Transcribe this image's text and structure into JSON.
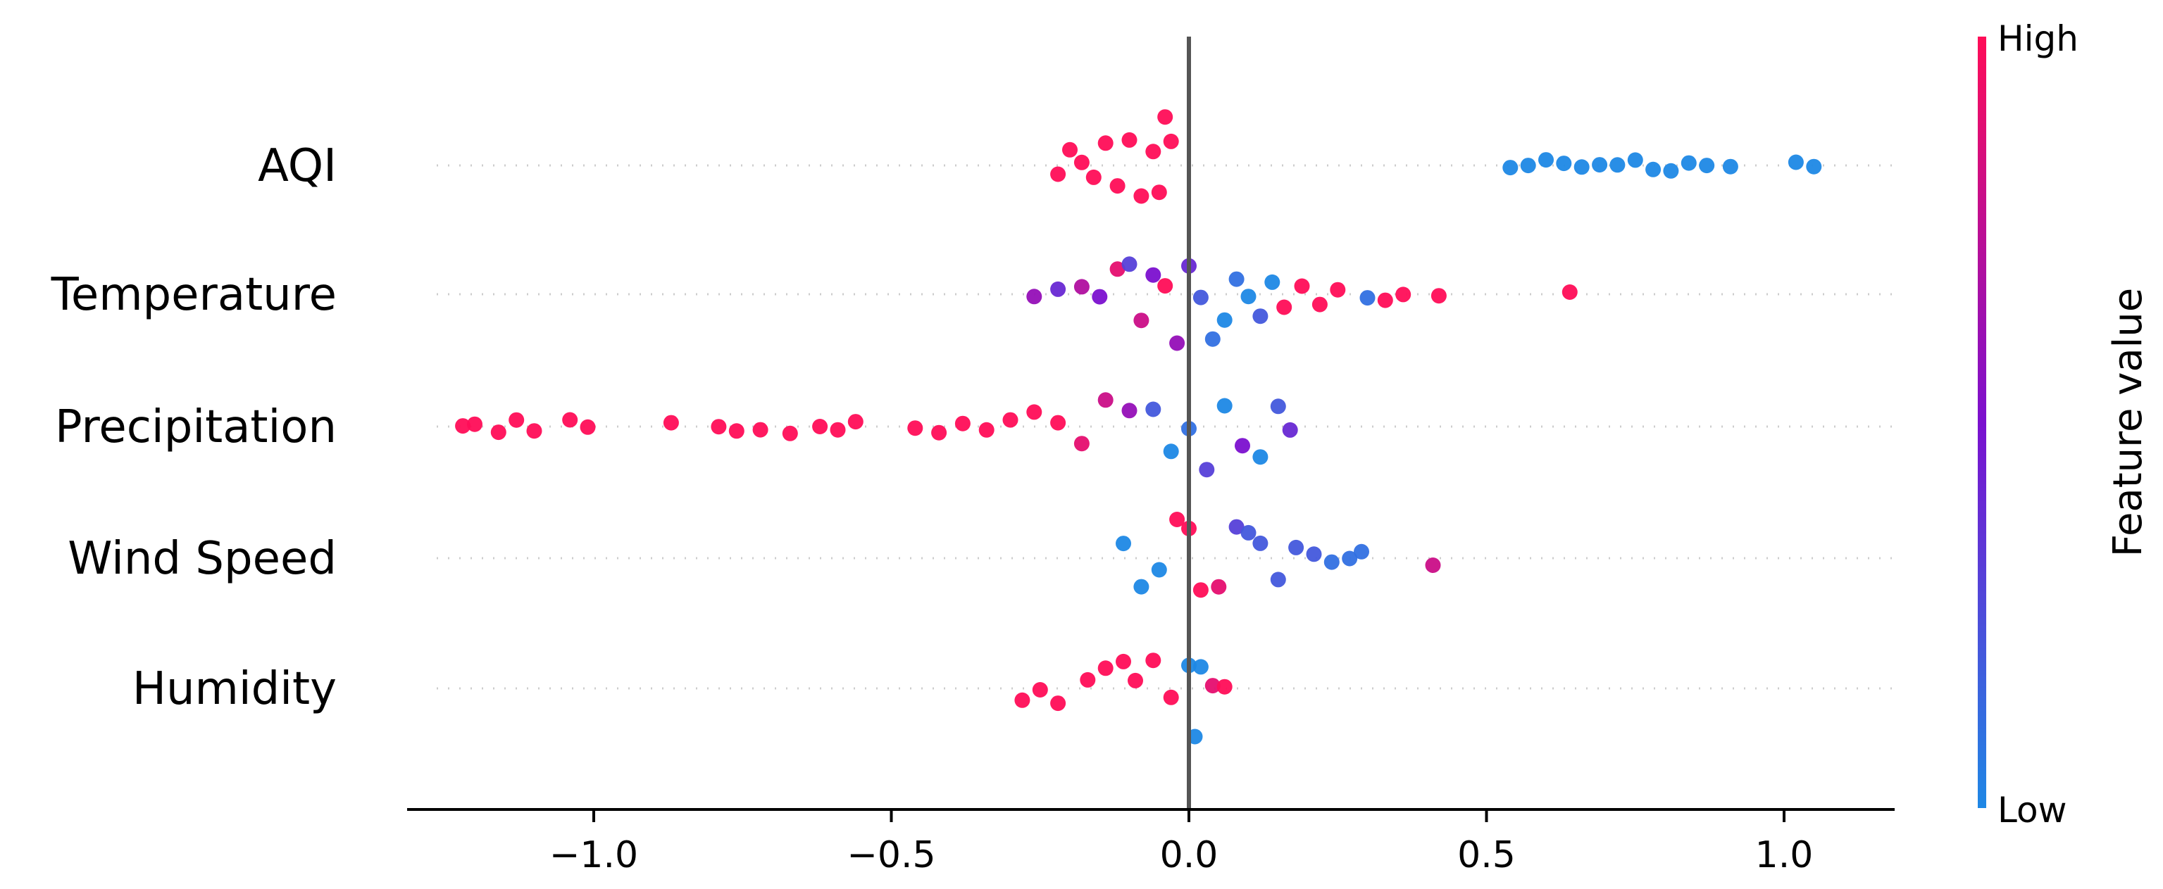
{
  "chart_data": {
    "type": "scatter",
    "title": "",
    "xlabel": "",
    "ylabel": "",
    "xlim": [
      -1.33,
      1.17
    ],
    "x_ticks": [
      -1.0,
      -0.5,
      0.0,
      0.5,
      1.0
    ],
    "x_tick_labels": [
      "−1.0",
      "−0.5",
      "0.0",
      "0.5",
      "1.0"
    ],
    "grid": false,
    "colorbar": {
      "title": "Feature value",
      "high_label": "High",
      "low_label": "Low",
      "high_color": "#ff0d57",
      "low_color": "#1e88e5"
    },
    "features": [
      {
        "name": "AQI",
        "points": [
          {
            "x": -0.22,
            "c": 1.0
          },
          {
            "x": -0.2,
            "c": 1.0
          },
          {
            "x": -0.18,
            "c": 1.0
          },
          {
            "x": -0.16,
            "c": 1.0
          },
          {
            "x": -0.14,
            "c": 1.0
          },
          {
            "x": -0.12,
            "c": 1.0
          },
          {
            "x": -0.1,
            "c": 1.0
          },
          {
            "x": -0.08,
            "c": 1.0
          },
          {
            "x": -0.06,
            "c": 1.0
          },
          {
            "x": -0.05,
            "c": 1.0
          },
          {
            "x": -0.04,
            "c": 1.0
          },
          {
            "x": -0.03,
            "c": 1.0
          },
          {
            "x": 0.54,
            "c": 0.0
          },
          {
            "x": 0.57,
            "c": 0.0
          },
          {
            "x": 0.6,
            "c": 0.0
          },
          {
            "x": 0.63,
            "c": 0.0
          },
          {
            "x": 0.66,
            "c": 0.0
          },
          {
            "x": 0.69,
            "c": 0.0
          },
          {
            "x": 0.72,
            "c": 0.0
          },
          {
            "x": 0.75,
            "c": 0.0
          },
          {
            "x": 0.78,
            "c": 0.0
          },
          {
            "x": 0.81,
            "c": 0.0
          },
          {
            "x": 0.84,
            "c": 0.0
          },
          {
            "x": 0.87,
            "c": 0.0
          },
          {
            "x": 0.91,
            "c": 0.0
          },
          {
            "x": 1.02,
            "c": 0.0
          },
          {
            "x": 1.05,
            "c": 0.0
          }
        ]
      },
      {
        "name": "Temperature",
        "points": [
          {
            "x": -0.26,
            "c": 0.6
          },
          {
            "x": -0.22,
            "c": 0.4
          },
          {
            "x": -0.18,
            "c": 0.7
          },
          {
            "x": -0.15,
            "c": 0.5
          },
          {
            "x": -0.12,
            "c": 0.9
          },
          {
            "x": -0.1,
            "c": 0.3
          },
          {
            "x": -0.08,
            "c": 0.8
          },
          {
            "x": -0.06,
            "c": 0.5
          },
          {
            "x": -0.04,
            "c": 1.0
          },
          {
            "x": -0.02,
            "c": 0.6
          },
          {
            "x": 0.0,
            "c": 0.4
          },
          {
            "x": 0.02,
            "c": 0.2
          },
          {
            "x": 0.04,
            "c": 0.1
          },
          {
            "x": 0.06,
            "c": 0.0
          },
          {
            "x": 0.08,
            "c": 0.1
          },
          {
            "x": 0.1,
            "c": 0.0
          },
          {
            "x": 0.12,
            "c": 0.2
          },
          {
            "x": 0.14,
            "c": 0.0
          },
          {
            "x": 0.16,
            "c": 1.0
          },
          {
            "x": 0.19,
            "c": 1.0
          },
          {
            "x": 0.22,
            "c": 1.0
          },
          {
            "x": 0.25,
            "c": 1.0
          },
          {
            "x": 0.3,
            "c": 0.1
          },
          {
            "x": 0.33,
            "c": 1.0
          },
          {
            "x": 0.36,
            "c": 1.0
          },
          {
            "x": 0.42,
            "c": 1.0
          },
          {
            "x": 0.64,
            "c": 1.0
          }
        ]
      },
      {
        "name": "Precipitation",
        "points": [
          {
            "x": -1.22,
            "c": 1.0
          },
          {
            "x": -1.2,
            "c": 1.0
          },
          {
            "x": -1.16,
            "c": 1.0
          },
          {
            "x": -1.13,
            "c": 1.0
          },
          {
            "x": -1.1,
            "c": 1.0
          },
          {
            "x": -1.04,
            "c": 1.0
          },
          {
            "x": -1.01,
            "c": 1.0
          },
          {
            "x": -0.87,
            "c": 1.0
          },
          {
            "x": -0.79,
            "c": 1.0
          },
          {
            "x": -0.76,
            "c": 1.0
          },
          {
            "x": -0.72,
            "c": 1.0
          },
          {
            "x": -0.67,
            "c": 1.0
          },
          {
            "x": -0.62,
            "c": 1.0
          },
          {
            "x": -0.59,
            "c": 1.0
          },
          {
            "x": -0.56,
            "c": 1.0
          },
          {
            "x": -0.46,
            "c": 1.0
          },
          {
            "x": -0.42,
            "c": 1.0
          },
          {
            "x": -0.38,
            "c": 1.0
          },
          {
            "x": -0.34,
            "c": 1.0
          },
          {
            "x": -0.3,
            "c": 1.0
          },
          {
            "x": -0.26,
            "c": 1.0
          },
          {
            "x": -0.22,
            "c": 1.0
          },
          {
            "x": -0.18,
            "c": 0.9
          },
          {
            "x": -0.14,
            "c": 0.8
          },
          {
            "x": -0.1,
            "c": 0.6
          },
          {
            "x": -0.06,
            "c": 0.2
          },
          {
            "x": -0.03,
            "c": 0.0
          },
          {
            "x": 0.0,
            "c": 0.1
          },
          {
            "x": 0.03,
            "c": 0.3
          },
          {
            "x": 0.06,
            "c": 0.0
          },
          {
            "x": 0.09,
            "c": 0.5
          },
          {
            "x": 0.12,
            "c": 0.0
          },
          {
            "x": 0.15,
            "c": 0.2
          },
          {
            "x": 0.17,
            "c": 0.4
          }
        ]
      },
      {
        "name": "Wind Speed",
        "points": [
          {
            "x": -0.11,
            "c": 0.0
          },
          {
            "x": -0.08,
            "c": 0.0
          },
          {
            "x": -0.05,
            "c": 0.0
          },
          {
            "x": -0.02,
            "c": 1.0
          },
          {
            "x": 0.0,
            "c": 1.0
          },
          {
            "x": 0.02,
            "c": 1.0
          },
          {
            "x": 0.05,
            "c": 0.9
          },
          {
            "x": 0.08,
            "c": 0.3
          },
          {
            "x": 0.1,
            "c": 0.2
          },
          {
            "x": 0.12,
            "c": 0.2
          },
          {
            "x": 0.15,
            "c": 0.2
          },
          {
            "x": 0.18,
            "c": 0.2
          },
          {
            "x": 0.21,
            "c": 0.2
          },
          {
            "x": 0.24,
            "c": 0.1
          },
          {
            "x": 0.27,
            "c": 0.1
          },
          {
            "x": 0.29,
            "c": 0.1
          },
          {
            "x": 0.41,
            "c": 0.8
          }
        ]
      },
      {
        "name": "Humidity",
        "points": [
          {
            "x": -0.28,
            "c": 1.0
          },
          {
            "x": -0.25,
            "c": 1.0
          },
          {
            "x": -0.22,
            "c": 1.0
          },
          {
            "x": -0.17,
            "c": 1.0
          },
          {
            "x": -0.14,
            "c": 1.0
          },
          {
            "x": -0.11,
            "c": 1.0
          },
          {
            "x": -0.09,
            "c": 1.0
          },
          {
            "x": -0.06,
            "c": 1.0
          },
          {
            "x": -0.03,
            "c": 1.0
          },
          {
            "x": 0.0,
            "c": 0.0
          },
          {
            "x": 0.01,
            "c": 0.0
          },
          {
            "x": 0.02,
            "c": 0.0
          },
          {
            "x": 0.04,
            "c": 0.9
          },
          {
            "x": 0.06,
            "c": 1.0
          }
        ]
      }
    ]
  }
}
